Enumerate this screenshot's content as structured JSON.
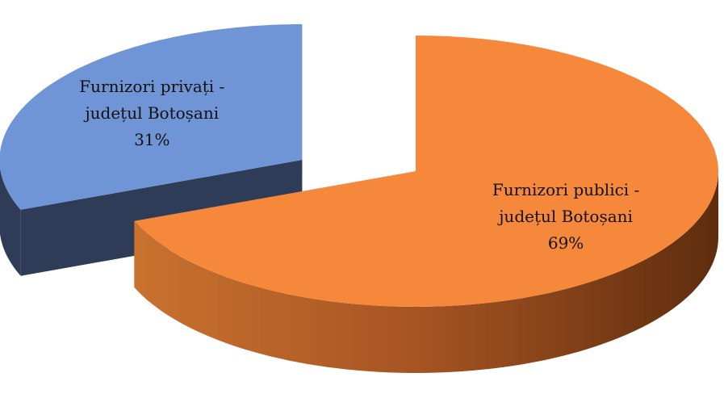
{
  "chart_data": {
    "type": "pie3d",
    "categories": [
      "Furnizori privați - județul Botoșani",
      "Furnizori publici - județul Botoșani"
    ],
    "values": [
      31,
      69
    ],
    "value_labels": [
      "31%",
      "69%"
    ],
    "colors": [
      "#6f95d6",
      "#f6883c"
    ],
    "exploded": [
      true,
      false
    ]
  }
}
